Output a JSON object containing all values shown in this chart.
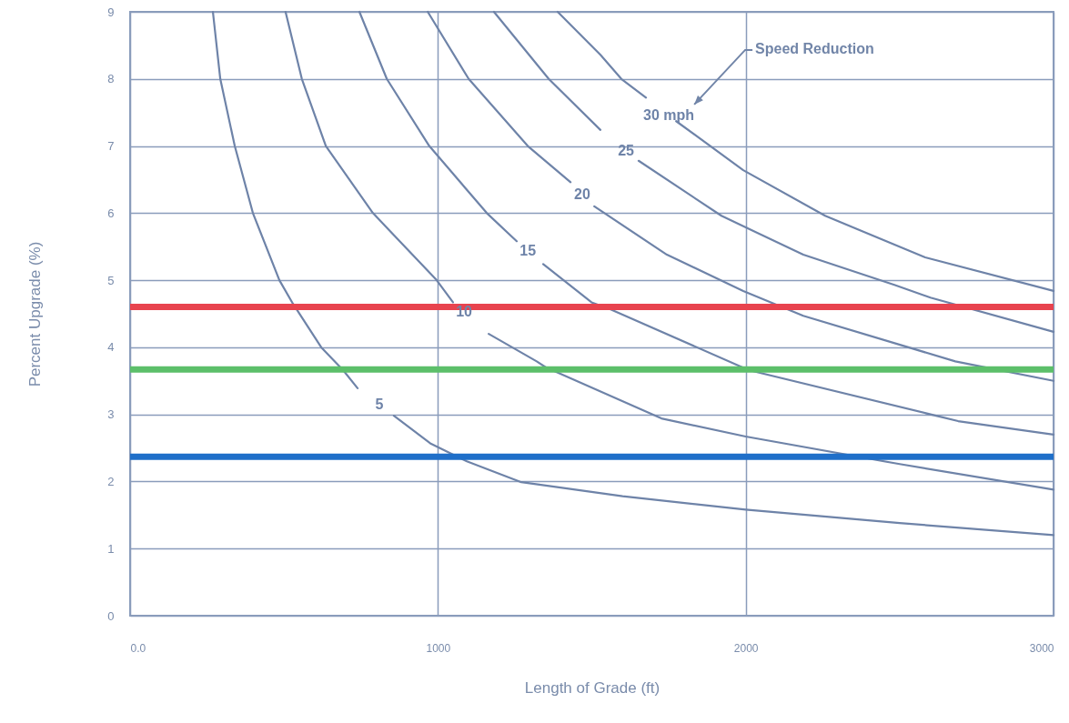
{
  "chart_data": {
    "type": "line",
    "xlabel": "Length of Grade (ft)",
    "ylabel": "Percent Upgrade (%)",
    "xlim": [
      0,
      3000
    ],
    "ylim": [
      0,
      9
    ],
    "xticks": [
      {
        "value": 0,
        "label": "0.0"
      },
      1000,
      2000,
      3000
    ],
    "yticks": [
      0,
      1,
      2,
      3,
      4,
      5,
      6,
      7,
      8,
      9
    ],
    "grid": true,
    "series": [
      {
        "name": "5",
        "color": "#6e83a8",
        "x": [
          269,
          293,
          340,
          399,
          485,
          529,
          621,
          692,
          739,
          810,
          857,
          975,
          1094,
          1271,
          1600,
          2000,
          2500,
          3000
        ],
        "values": [
          9,
          8,
          7,
          6,
          5,
          4.65,
          4,
          3.66,
          3.39,
          null,
          2.98,
          2.57,
          2.3,
          1.99,
          1.78,
          1.58,
          1.38,
          1.2
        ]
      },
      {
        "name": "10",
        "color": "#6e83a8",
        "x": [
          505,
          558,
          636,
          789,
          996,
          1049,
          1085,
          1165,
          1321,
          1351,
          1726,
          2000,
          2500,
          3000
        ],
        "values": [
          9,
          8,
          7,
          6,
          5,
          4.67,
          null,
          4.2,
          3.79,
          3.7,
          2.94,
          2.67,
          2.26,
          1.88
        ]
      },
      {
        "name": "15",
        "color": "#6e83a8",
        "x": [
          745,
          834,
          972,
          1159,
          1256,
          1292,
          1342,
          1499,
          1558,
          2010,
          2690,
          3000
        ],
        "values": [
          9,
          8,
          7,
          6,
          5.58,
          null,
          5.24,
          4.67,
          4.57,
          3.66,
          2.9,
          2.7
        ]
      },
      {
        "name": "20",
        "color": "#6e83a8",
        "x": [
          967,
          1100,
          1292,
          1431,
          1469,
          1508,
          1744,
          1992,
          2187,
          2681,
          3000
        ],
        "values": [
          9,
          8,
          7,
          6.46,
          null,
          6.1,
          5.38,
          4.84,
          4.47,
          3.79,
          3.5
        ]
      },
      {
        "name": "25",
        "color": "#6e83a8",
        "x": [
          1182,
          1360,
          1528,
          1611,
          1652,
          1921,
          2187,
          2483,
          2600,
          3000
        ],
        "values": [
          9,
          8,
          7.24,
          null,
          6.78,
          5.96,
          5.38,
          4.93,
          4.74,
          4.23
        ]
      },
      {
        "name": "30 mph",
        "color": "#6e83a8",
        "x": [
          1389,
          1528,
          1596,
          1676,
          1750,
          1774,
          1992,
          2258,
          2583,
          3000
        ],
        "values": [
          9,
          8.36,
          8,
          7.72,
          null,
          7.37,
          6.64,
          5.96,
          5.34,
          4.84
        ]
      }
    ],
    "ref_lines": [
      {
        "axis": "y",
        "value": 4.6,
        "color": "#e8434e"
      },
      {
        "axis": "y",
        "value": 3.67,
        "color": "#5cbf6a"
      },
      {
        "axis": "y",
        "value": 2.37,
        "color": "#1f6fc9"
      }
    ],
    "annotations": [
      "Speed Reduction"
    ]
  }
}
